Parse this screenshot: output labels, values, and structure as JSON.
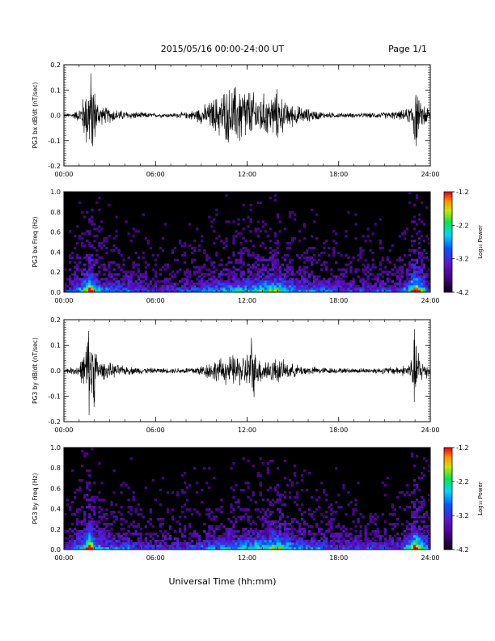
{
  "header": {
    "title": "2015/05/16  00:00-24:00 UT",
    "page": "Page 1/1"
  },
  "xaxis_label": "Universal Time (hh:mm)",
  "colors": {
    "background": "#ffffff",
    "trace": "#000000",
    "spectrogram_floor": "#000000"
  },
  "chart_data": [
    {
      "type": "line",
      "ylabel": "PG3 bx dB/dt (nT/sec)",
      "xlim": [
        0,
        24
      ],
      "ylim": [
        -0.2,
        0.2
      ],
      "xticks": [
        "00:00",
        "06:00",
        "12:00",
        "18:00",
        "24:00"
      ],
      "yticks": [
        "-0.2",
        "-0.1",
        "0.0",
        "0.1",
        "0.2"
      ],
      "envelope": {
        "x": [
          0,
          0.5,
          1.0,
          1.2,
          1.5,
          1.7,
          1.9,
          2.1,
          2.5,
          3,
          4,
          5,
          6,
          7,
          8,
          8.5,
          9,
          9.5,
          10,
          10.5,
          11,
          11.5,
          12,
          12.5,
          13,
          13.5,
          14,
          14.5,
          15,
          15.5,
          16,
          17,
          18,
          19,
          20,
          21,
          22,
          22.5,
          22.8,
          23.0,
          23.2,
          23.4,
          23.6,
          24
        ],
        "amp": [
          0.008,
          0.01,
          0.03,
          0.07,
          0.15,
          0.2,
          0.2,
          0.08,
          0.04,
          0.035,
          0.02,
          0.015,
          0.01,
          0.01,
          0.015,
          0.025,
          0.04,
          0.06,
          0.09,
          0.12,
          0.13,
          0.15,
          0.13,
          0.1,
          0.1,
          0.09,
          0.12,
          0.06,
          0.05,
          0.04,
          0.03,
          0.015,
          0.012,
          0.01,
          0.012,
          0.015,
          0.02,
          0.03,
          0.06,
          0.2,
          0.08,
          0.05,
          0.06,
          0.03
        ]
      }
    },
    {
      "type": "heatmap",
      "ylabel": "PG3 bx Freq (Hz)",
      "xlim": [
        0,
        24
      ],
      "ylim": [
        0.0,
        1.0
      ],
      "xticks": [
        "00:00",
        "06:00",
        "12:00",
        "18:00",
        "24:00"
      ],
      "yticks": [
        "0.0",
        "0.2",
        "0.4",
        "0.6",
        "0.8",
        "1.0"
      ],
      "colorbar": {
        "label": "Log₁₀ Power",
        "range": [
          -4.2,
          -1.2
        ],
        "ticks": [
          "-1.2",
          "-2.2",
          "-3.2",
          "-4.2"
        ]
      },
      "activity": {
        "x": [
          0,
          1.2,
          1.7,
          2.0,
          2.5,
          4,
          6,
          8,
          9,
          10,
          11,
          12,
          13,
          14,
          15,
          16,
          18,
          20,
          22,
          22.6,
          23.0,
          23.5,
          24
        ],
        "level": [
          0.2,
          0.5,
          0.95,
          0.6,
          0.4,
          0.35,
          0.25,
          0.3,
          0.35,
          0.4,
          0.45,
          0.5,
          0.55,
          0.65,
          0.45,
          0.4,
          0.3,
          0.3,
          0.3,
          0.5,
          0.9,
          0.55,
          0.3
        ]
      }
    },
    {
      "type": "line",
      "ylabel": "PG3 by dB/dt (nT/sec)",
      "xlim": [
        0,
        24
      ],
      "ylim": [
        -0.2,
        0.2
      ],
      "xticks": [
        "00:00",
        "06:00",
        "12:00",
        "18:00",
        "24:00"
      ],
      "yticks": [
        "-0.2",
        "-0.1",
        "0.0",
        "0.1",
        "0.2"
      ],
      "envelope": {
        "x": [
          0,
          0.5,
          1.0,
          1.3,
          1.6,
          1.8,
          2.0,
          2.2,
          2.5,
          3,
          4,
          5,
          6,
          7,
          8,
          8.5,
          9,
          9.5,
          10,
          10.5,
          11,
          11.5,
          12,
          12.3,
          12.6,
          13,
          13.5,
          14,
          14.5,
          15,
          16,
          17,
          18,
          19,
          20,
          21,
          22,
          22.5,
          22.8,
          23.0,
          23.2,
          23.4,
          23.6,
          24
        ],
        "amp": [
          0.012,
          0.015,
          0.03,
          0.08,
          0.2,
          0.2,
          0.15,
          0.06,
          0.04,
          0.035,
          0.02,
          0.015,
          0.012,
          0.012,
          0.015,
          0.02,
          0.025,
          0.04,
          0.05,
          0.06,
          0.07,
          0.07,
          0.08,
          0.17,
          0.06,
          0.06,
          0.05,
          0.06,
          0.04,
          0.03,
          0.02,
          0.015,
          0.012,
          0.012,
          0.012,
          0.015,
          0.02,
          0.03,
          0.06,
          0.2,
          0.1,
          0.05,
          0.05,
          0.02
        ]
      }
    },
    {
      "type": "heatmap",
      "ylabel": "PG3 by Freq (Hz)",
      "xlim": [
        0,
        24
      ],
      "ylim": [
        0.0,
        1.0
      ],
      "xticks": [
        "00:00",
        "06:00",
        "12:00",
        "18:00",
        "24:00"
      ],
      "yticks": [
        "0.0",
        "0.2",
        "0.4",
        "0.6",
        "0.8",
        "1.0"
      ],
      "colorbar": {
        "label": "Log₁₀ Power",
        "range": [
          -4.2,
          -1.2
        ],
        "ticks": [
          "-1.2",
          "-2.2",
          "-3.2",
          "-4.2"
        ]
      },
      "activity": {
        "x": [
          0,
          1.2,
          1.7,
          2.0,
          2.5,
          4,
          6,
          8,
          9,
          10,
          11,
          12,
          13,
          14,
          15,
          16,
          18,
          20,
          22,
          22.6,
          23.0,
          23.5,
          24
        ],
        "level": [
          0.2,
          0.5,
          0.95,
          0.6,
          0.4,
          0.35,
          0.25,
          0.3,
          0.35,
          0.4,
          0.45,
          0.5,
          0.55,
          0.65,
          0.45,
          0.4,
          0.3,
          0.3,
          0.3,
          0.5,
          0.9,
          0.55,
          0.3
        ]
      }
    }
  ]
}
